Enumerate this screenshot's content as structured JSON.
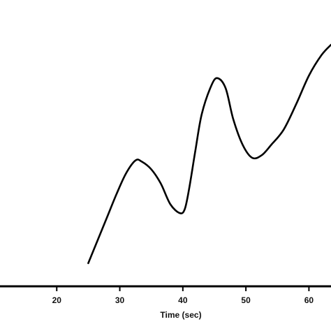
{
  "chart_data": {
    "type": "line",
    "title": "",
    "xlabel": "Time (sec)",
    "ylabel": "",
    "xlim": [
      11,
      63.5
    ],
    "ylim": [
      0,
      100
    ],
    "xticks": [
      20,
      30,
      40,
      50,
      60
    ],
    "grid": false,
    "legend": "none",
    "colors": {
      "line": "#000000",
      "axis": "#000000",
      "text": "#111111",
      "background": "#ffffff"
    },
    "series": [
      {
        "x": [
          25,
          26.5,
          28,
          29.5,
          31,
          32.5,
          33.5,
          35,
          36.5,
          38,
          39.5,
          40.3,
          41,
          42,
          43,
          44.5,
          45.5,
          46.8,
          48,
          49.5,
          51,
          52.5,
          54,
          56,
          58,
          60,
          62,
          63.5
        ],
        "y": [
          9,
          18,
          27,
          36,
          44,
          49,
          48.5,
          45.5,
          40,
          32,
          28.5,
          30,
          38,
          53,
          67,
          78,
          81,
          77,
          65,
          55,
          50,
          51,
          55,
          61,
          71,
          82,
          90,
          94
        ]
      }
    ]
  }
}
